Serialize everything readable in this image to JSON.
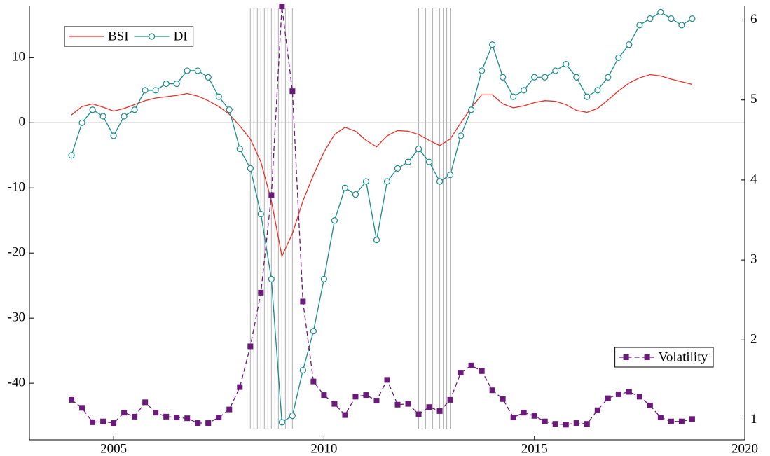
{
  "chart_data": {
    "type": "line",
    "x": [
      2004.0,
      2004.25,
      2004.5,
      2004.75,
      2005.0,
      2005.25,
      2005.5,
      2005.75,
      2006.0,
      2006.25,
      2006.5,
      2006.75,
      2007.0,
      2007.25,
      2007.5,
      2007.75,
      2008.0,
      2008.25,
      2008.5,
      2008.75,
      2009.0,
      2009.25,
      2009.5,
      2009.75,
      2010.0,
      2010.25,
      2010.5,
      2010.75,
      2011.0,
      2011.25,
      2011.5,
      2011.75,
      2012.0,
      2012.25,
      2012.5,
      2012.75,
      2013.0,
      2013.25,
      2013.5,
      2013.75,
      2014.0,
      2014.25,
      2014.5,
      2014.75,
      2015.0,
      2015.25,
      2015.5,
      2015.75,
      2016.0,
      2016.25,
      2016.5,
      2016.75,
      2017.0,
      2017.25,
      2017.5,
      2017.75,
      2018.0,
      2018.25,
      2018.5,
      2018.75
    ],
    "series": [
      {
        "name": "BSI",
        "color": "#e8302a",
        "marker": "none",
        "dashed": false,
        "values": [
          1.2,
          2.5,
          2.9,
          2.4,
          1.8,
          2.2,
          2.8,
          3.4,
          3.8,
          4.0,
          4.2,
          4.5,
          4.1,
          3.4,
          2.5,
          1.3,
          -0.5,
          -2.5,
          -6,
          -12,
          -20.5,
          -17,
          -12,
          -8,
          -4.5,
          -1.8,
          -0.7,
          -1.3,
          -2.7,
          -3.7,
          -2,
          -1.2,
          -1.3,
          -1.8,
          -2.7,
          -3.5,
          -2.5,
          0,
          2.3,
          4.3,
          4.3,
          2.9,
          2.3,
          2.6,
          3.1,
          3.4,
          3.3,
          2.8,
          1.9,
          1.6,
          2.2,
          3.5,
          4.9,
          6.1,
          6.9,
          7.4,
          7.2,
          6.7,
          6.3,
          5.9
        ]
      },
      {
        "name": "DI",
        "color": "#1a8c8c",
        "marker": "circle",
        "dashed": false,
        "values": [
          -5,
          0,
          2,
          1,
          -2,
          1,
          2,
          5,
          5,
          6,
          6,
          8,
          8,
          7,
          4,
          2,
          -4,
          -7,
          -14,
          -24,
          -46,
          -45,
          -38,
          -32,
          -24,
          -15,
          -10,
          -11,
          -9,
          -18,
          -9,
          -7,
          -6,
          -4,
          -6,
          -9,
          -8,
          -2,
          2,
          8,
          12,
          7,
          4,
          5,
          7,
          7,
          8,
          9,
          7,
          4,
          5,
          7,
          10,
          12,
          15,
          16,
          17,
          16,
          15,
          16
        ]
      },
      {
        "name": "Volatility",
        "color": "#6a1b7a",
        "marker": "square",
        "dashed": true,
        "axis": "y2",
        "values": [
          1.25,
          1.15,
          0.97,
          0.98,
          0.96,
          1.09,
          1.04,
          1.22,
          1.09,
          1.04,
          1.03,
          1.02,
          0.96,
          0.96,
          1.03,
          1.13,
          1.41,
          1.92,
          2.59,
          3.81,
          6.17,
          5.11,
          2.48,
          1.48,
          1.31,
          1.2,
          1.06,
          1.29,
          1.31,
          1.24,
          1.5,
          1.19,
          1.2,
          1.07,
          1.16,
          1.11,
          1.25,
          1.59,
          1.68,
          1.61,
          1.37,
          1.26,
          1.03,
          1.09,
          1.05,
          0.98,
          0.95,
          0.94,
          0.96,
          0.95,
          1.12,
          1.27,
          1.32,
          1.35,
          1.29,
          1.18,
          1.03,
          0.98,
          0.98,
          1.01
        ]
      }
    ],
    "xlim": [
      2003,
      2020
    ],
    "xticks": [
      2005,
      2010,
      2015,
      2020
    ],
    "ylim": [
      -48.7,
      18
    ],
    "yticks": [
      -40,
      -30,
      -20,
      -10,
      0,
      10
    ],
    "y2lim": [
      0.75,
      6.18
    ],
    "y2ticks": [
      1,
      2,
      3,
      4,
      5,
      6
    ],
    "zero_line": true,
    "shaded_periods": [
      [
        2008.25,
        2009.25
      ],
      [
        2012.25,
        2013.0
      ]
    ]
  }
}
